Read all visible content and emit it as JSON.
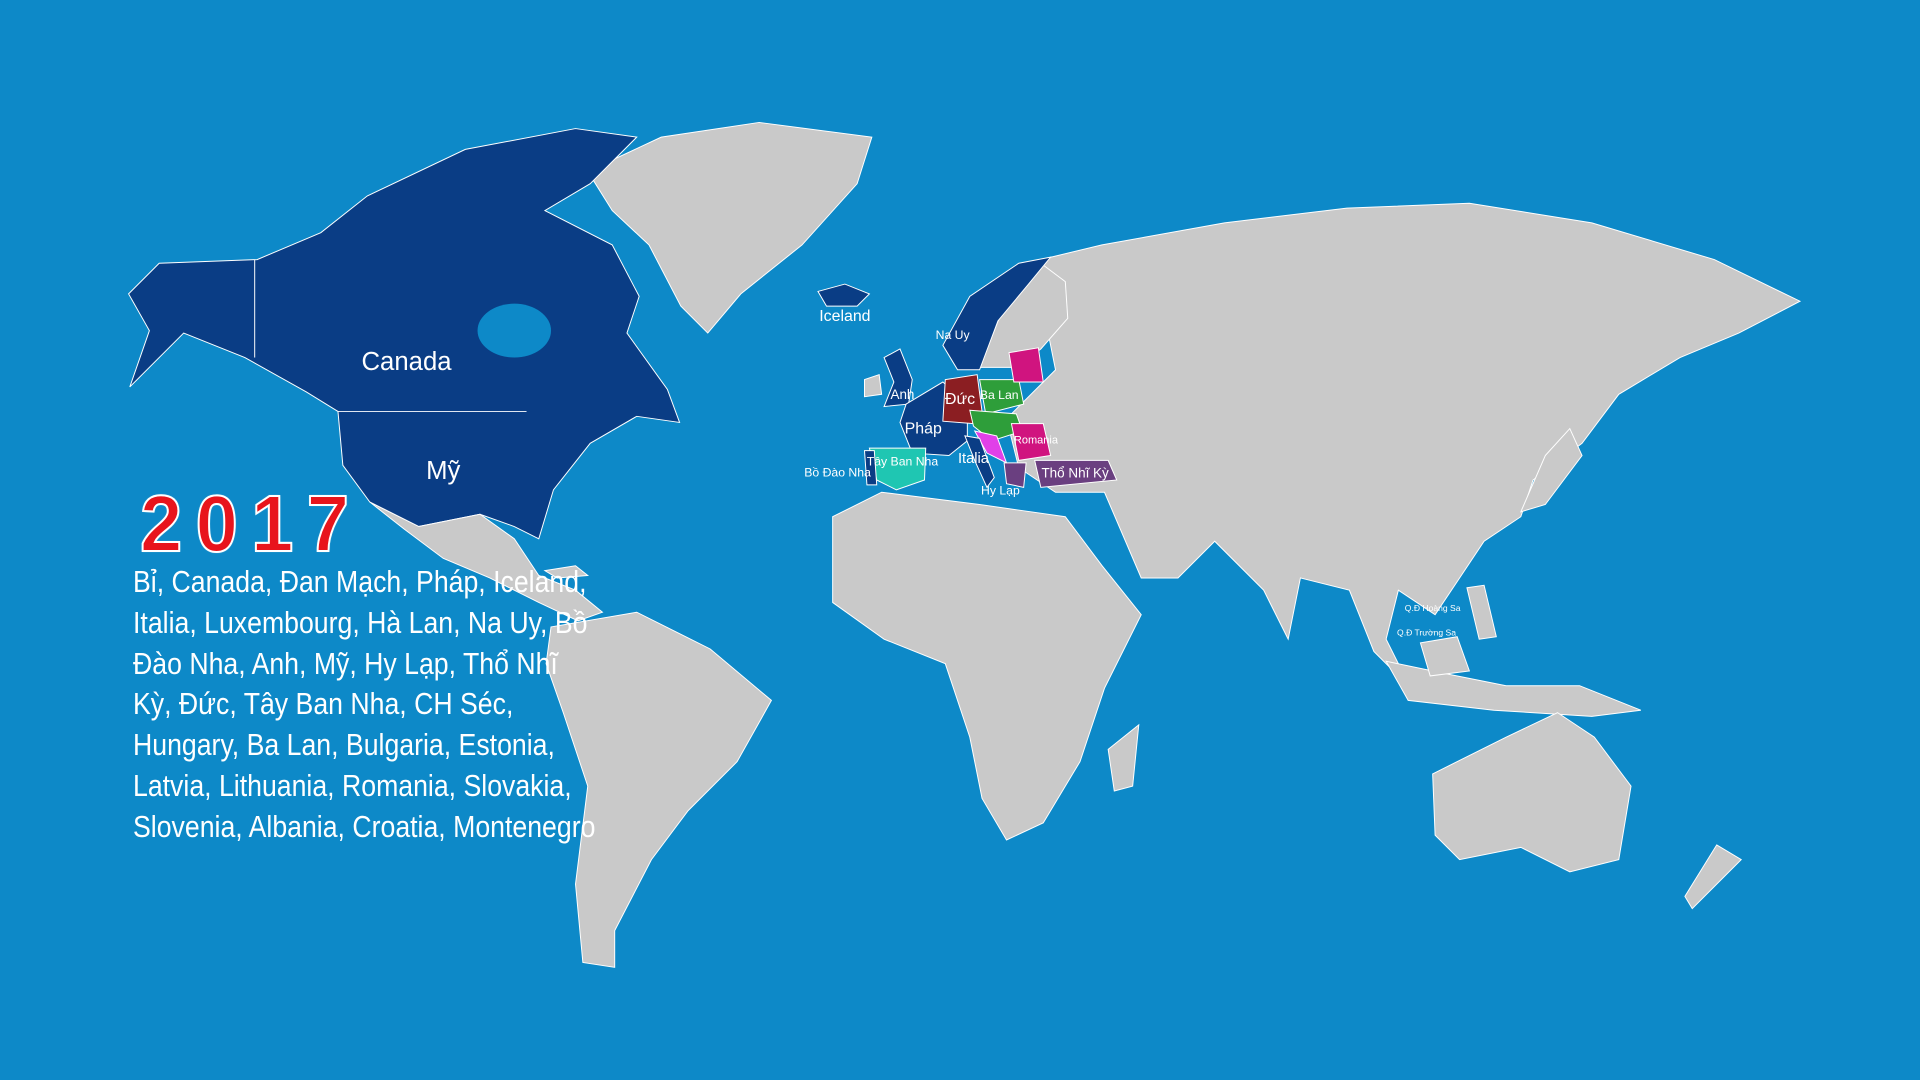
{
  "map": {
    "colors": {
      "ocean": "#0d89c8",
      "land": "#c9c9c9",
      "member_default": "#0a3d85",
      "germany": "#8b1e22",
      "poland_group": "#2e9e3a",
      "baltic_romania": "#d0147f",
      "turkey_greece": "#6a3f80",
      "spain": "#1fc6b2",
      "croatia": "#e040e8"
    },
    "labels": {
      "canada": "Canada",
      "usa": "Mỹ",
      "iceland": "Iceland",
      "norway": "Na Uy",
      "uk": "Anh",
      "germany": "Đức",
      "poland": "Ba Lan",
      "france": "Pháp",
      "romania": "Romania",
      "spain": "Tây Ban Nha",
      "portugal": "Bồ Đào Nha",
      "italy": "Italia",
      "greece": "Hy Lạp",
      "turkey": "Thổ Nhĩ Kỳ",
      "paracel": "Q.Đ Hoàng Sa",
      "spratly": "Q.Đ Trường Sa"
    }
  },
  "year": "2017",
  "countries_text": "Bỉ, Canada, Đan Mạch, Pháp, Iceland, Italia, Luxembourg, Hà Lan, Na Uy, Bồ Đào Nha, Anh, Mỹ, Hy Lạp, Thổ Nhĩ Kỳ, Đức, Tây Ban Nha, CH Séc, Hungary, Ba Lan, Bulgaria, Estonia, Latvia, Lithuania, Romania, Slovakia, Slovenia, Albania, Croatia, Montenegro"
}
